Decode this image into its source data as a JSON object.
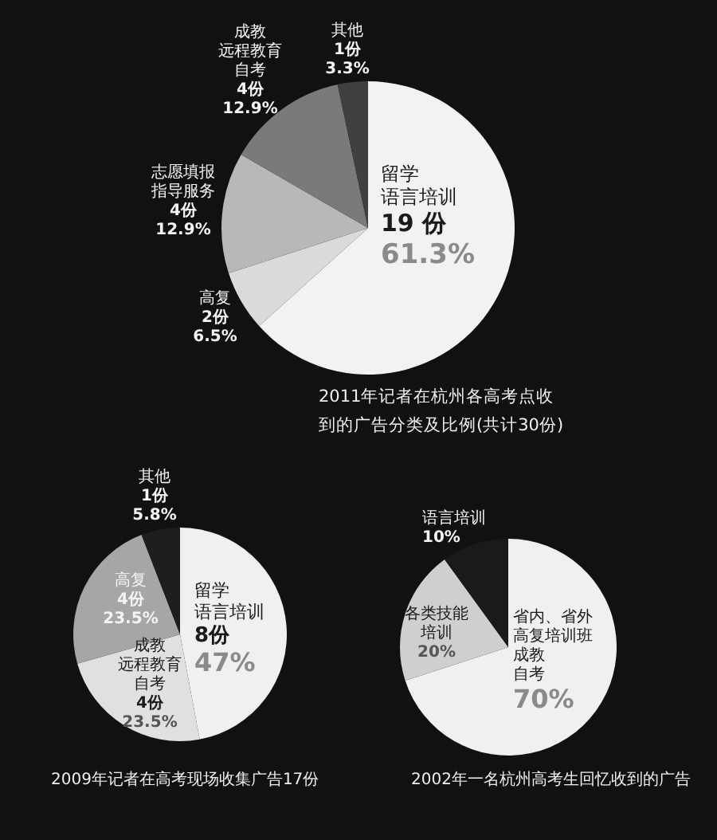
{
  "chart_data": [
    {
      "type": "pie",
      "title": "2011年记者在杭州各高考点收到的广告分类及比例(共计30份)",
      "categories": [
        "留学语言培训",
        "高复",
        "志愿填报指导服务",
        "成教远程教育自考",
        "其他"
      ],
      "values": [
        19,
        2,
        4,
        4,
        1
      ],
      "value_labels": [
        "19 份\n61.3%",
        "2份\n6.5%",
        "4份\n12.9%",
        "4份\n12.9%",
        "1份\n3.3%"
      ],
      "colors": [
        "#f2f2f2",
        "#dadada",
        "#b8b8b8",
        "#7a7a7a",
        "#404040"
      ]
    },
    {
      "type": "pie",
      "title": "2009年记者在高考现场收集广告17份",
      "categories": [
        "留学语言培训",
        "成教远程教育自考",
        "高复",
        "其他"
      ],
      "values": [
        8,
        4,
        4,
        1
      ],
      "value_labels": [
        "8份\n47%",
        "4份\n23.5%",
        "4份\n23.5%",
        "1份\n5.8%"
      ],
      "colors": [
        "#f0f0f0",
        "#e0e0e0",
        "#a6a6a6",
        "#1e1e1e"
      ]
    },
    {
      "type": "pie",
      "title": "2002年一名杭州高考生回忆收到的广告",
      "categories": [
        "省内、省外高复培训班成教自考",
        "各类技能培训",
        "语言培训"
      ],
      "values": [
        70,
        20,
        10
      ],
      "value_labels": [
        "70%",
        "20%",
        "10%"
      ],
      "colors": [
        "#f0f0f0",
        "#cfcfcf",
        "#1a1a1a"
      ]
    }
  ]
}
